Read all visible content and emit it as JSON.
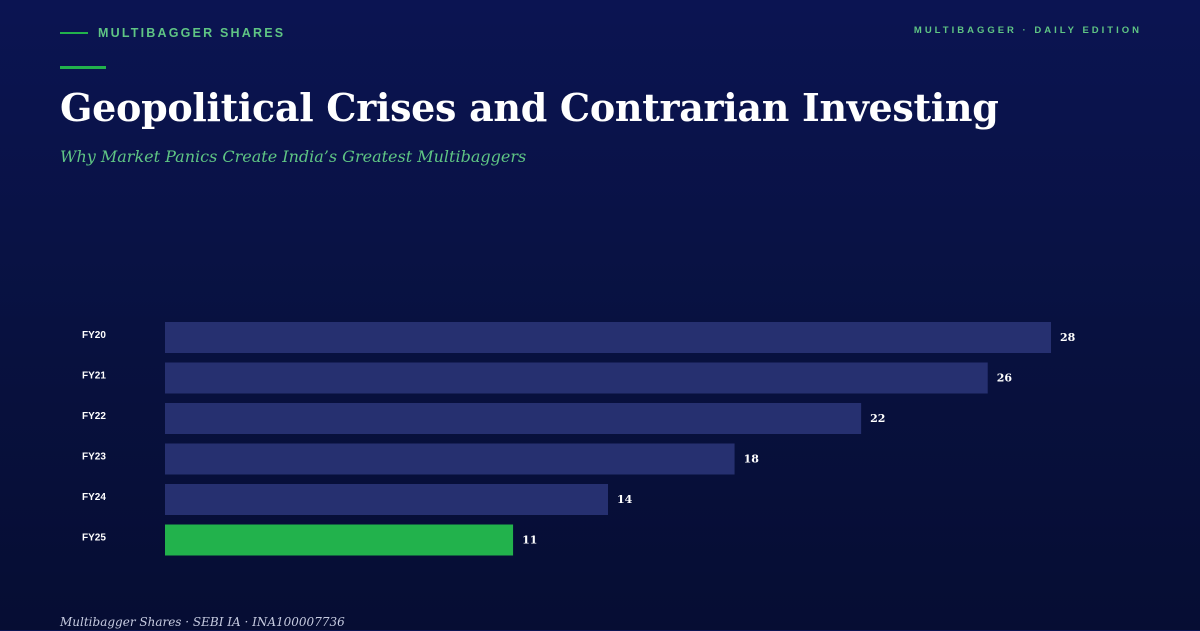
{
  "header": {
    "section_label": "MULTIBAGGER SHARES",
    "edition": "MULTIBAGGER · DAILY EDITION",
    "title": "Geopolitical Crises and Contrarian Investing",
    "subtitle": "Why Market Panics Create India’s Greatest Multibaggers"
  },
  "colors": {
    "accent": "#22b24c",
    "accent_text": "#5fc584",
    "bar": "#263070",
    "highlight_bar": "#22b24c",
    "background": "#0b1452"
  },
  "chart_data": {
    "type": "bar",
    "orientation": "horizontal",
    "categories": [
      "FY20",
      "FY21",
      "FY22",
      "FY23",
      "FY24",
      "FY25"
    ],
    "values": [
      28,
      26,
      22,
      18,
      14,
      11
    ],
    "highlight": "FY25",
    "title": "",
    "xlabel": "",
    "ylabel": "",
    "xlim": [
      0,
      28
    ],
    "grid": false,
    "legend": "none"
  },
  "footer": {
    "text": "Multibagger Shares · SEBI IA · INA100007736"
  }
}
